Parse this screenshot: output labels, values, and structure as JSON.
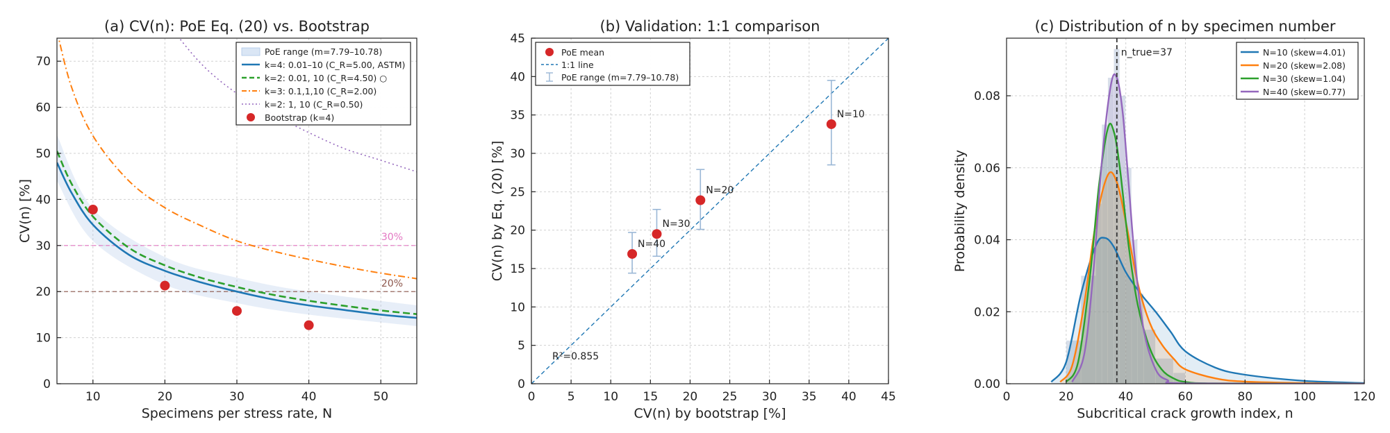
{
  "chart_data": [
    {
      "type": "line",
      "title": "(a) CV(n): PoE Eq. (20) vs. Bootstrap",
      "xlabel": "Specimens per stress rate, N",
      "ylabel": "CV(n) [%]",
      "xlim": [
        5,
        55
      ],
      "ylim": [
        0,
        75
      ],
      "xticks": [
        10,
        20,
        30,
        40,
        50
      ],
      "yticks": [
        0,
        10,
        20,
        30,
        40,
        50,
        60,
        70
      ],
      "grid": true,
      "legend_position": "top-right",
      "band": {
        "label": "PoE range (m=7.79–10.78)",
        "color": "#aec7e8",
        "x": [
          5,
          10,
          20,
          30,
          40,
          55
        ],
        "lower": [
          44,
          31,
          21.5,
          17.5,
          15,
          12.5
        ],
        "upper": [
          54,
          38,
          27.5,
          23,
          20,
          17
        ]
      },
      "series": [
        {
          "name": "k=4: 0.01–10 (C_R=5.00, ASTM)",
          "color": "#1f77b4",
          "style": "solid",
          "x": [
            5,
            7,
            10,
            15,
            20,
            25,
            30,
            35,
            40,
            45,
            50,
            55
          ],
          "values": [
            48,
            41.5,
            34.5,
            28,
            24.5,
            22,
            20,
            18.3,
            17,
            16,
            15,
            14.3
          ]
        },
        {
          "name": "k=2: 0.01, 10 (C_R=4.50) ○",
          "color": "#2ca02c",
          "style": "dashed",
          "x": [
            5,
            7,
            10,
            15,
            20,
            25,
            30,
            35,
            40,
            45,
            50,
            55
          ],
          "values": [
            50.5,
            43.5,
            36.3,
            29.5,
            25.7,
            23,
            21,
            19.3,
            18,
            16.9,
            15.9,
            15.1
          ]
        },
        {
          "name": "k=3: 0.1,1,10 (C_R=2.00)",
          "color": "#ff7f0e",
          "style": "dashdot",
          "x": [
            5,
            7,
            10,
            15,
            20,
            25,
            30,
            35,
            40,
            45,
            50,
            55
          ],
          "values": [
            76.5,
            64.5,
            53.8,
            44,
            38.2,
            34.3,
            31,
            28.8,
            27,
            25.4,
            24,
            22.8
          ]
        },
        {
          "name": "k=2: 1, 10 (C_R=0.50)",
          "color": "#9467bd",
          "style": "dotted",
          "x": [
            20,
            25,
            30,
            35,
            40,
            45,
            50,
            55
          ],
          "values": [
            79,
            69.5,
            63,
            58.5,
            54.5,
            51,
            48.5,
            46
          ]
        },
        {
          "name": "Bootstrap (k=4)",
          "color": "#d62728",
          "style": "marker",
          "x": [
            10,
            20,
            30,
            40
          ],
          "values": [
            37.8,
            21.3,
            15.8,
            12.7
          ]
        }
      ],
      "reference_lines": [
        {
          "y": 30,
          "label": "30%",
          "color": "#e377c2"
        },
        {
          "y": 20,
          "label": "20%",
          "color": "#8c564b"
        }
      ]
    },
    {
      "type": "scatter",
      "title": "(b) Validation: 1:1 comparison",
      "xlabel": "CV(n) by bootstrap [%]",
      "ylabel": "CV(n) by Eq. (20) [%]",
      "xlim": [
        0,
        45
      ],
      "ylim": [
        0,
        45
      ],
      "xticks": [
        0,
        5,
        10,
        15,
        20,
        25,
        30,
        35,
        40,
        45
      ],
      "yticks": [
        0,
        5,
        10,
        15,
        20,
        25,
        30,
        35,
        40,
        45
      ],
      "grid": true,
      "legend_position": "top-left",
      "legend": [
        "PoE mean",
        "1:1 line",
        "PoE range (m=7.79–10.78)"
      ],
      "points": [
        {
          "label": "N=40",
          "x": 12.7,
          "y": 16.9,
          "lo": 14.4,
          "hi": 19.7
        },
        {
          "label": "N=30",
          "x": 15.8,
          "y": 19.5,
          "lo": 16.6,
          "hi": 22.7
        },
        {
          "label": "N=20",
          "x": 21.3,
          "y": 23.9,
          "lo": 20.1,
          "hi": 27.9
        },
        {
          "label": "N=10",
          "x": 37.8,
          "y": 33.8,
          "lo": 28.5,
          "hi": 39.5
        }
      ],
      "annotation": "R²=0.855"
    },
    {
      "type": "area",
      "title": "(c) Distribution of n by specimen number",
      "xlabel": "Subcritical crack growth index, n",
      "ylabel": "Probability density",
      "xlim": [
        0,
        120
      ],
      "ylim": [
        0,
        0.096
      ],
      "xticks": [
        0,
        20,
        40,
        60,
        80,
        100,
        120
      ],
      "yticks": [
        0.0,
        0.02,
        0.04,
        0.06,
        0.08
      ],
      "grid": true,
      "legend_position": "top-right",
      "true_value": {
        "x": 37,
        "label": "n_true=37"
      },
      "series": [
        {
          "name": "N=10  (skew=4.01)",
          "color": "#1f77b4",
          "x": [
            15,
            20,
            25,
            30,
            33,
            36,
            40,
            45,
            50,
            55,
            60,
            70,
            80,
            100,
            120
          ],
          "values": [
            0.0005,
            0.006,
            0.025,
            0.0385,
            0.0405,
            0.038,
            0.031,
            0.025,
            0.02,
            0.0145,
            0.009,
            0.0045,
            0.0025,
            0.0008,
            0.0002
          ]
        },
        {
          "name": "N=20  (skew=2.08)",
          "color": "#ff7f0e",
          "x": [
            18,
            22,
            26,
            30,
            34,
            37,
            40,
            44,
            48,
            52,
            56,
            60,
            70,
            80,
            100,
            120
          ],
          "values": [
            0.0005,
            0.005,
            0.022,
            0.045,
            0.058,
            0.056,
            0.045,
            0.028,
            0.017,
            0.011,
            0.007,
            0.004,
            0.0015,
            0.0006,
            0.0002,
            0
          ]
        },
        {
          "name": "N=30  (skew=1.04)",
          "color": "#2ca02c",
          "x": [
            20,
            24,
            28,
            31,
            34,
            36,
            38,
            41,
            44,
            48,
            52,
            56,
            60,
            70,
            120
          ],
          "values": [
            0.0005,
            0.006,
            0.03,
            0.055,
            0.071,
            0.07,
            0.06,
            0.038,
            0.022,
            0.01,
            0.004,
            0.0015,
            0.0005,
            0.0001,
            0
          ]
        },
        {
          "name": "N=40  (skew=0.77)",
          "color": "#9467bd",
          "x": [
            22,
            26,
            29,
            32,
            35,
            37,
            39,
            41,
            43,
            46,
            50,
            54,
            60,
            120
          ],
          "values": [
            0.0005,
            0.008,
            0.03,
            0.062,
            0.083,
            0.085,
            0.075,
            0.055,
            0.035,
            0.015,
            0.004,
            0.001,
            0.0001,
            0
          ]
        }
      ],
      "histogram": {
        "bin_edges": [
          20,
          25,
          30,
          32,
          34,
          36,
          38,
          40,
          42,
          44,
          46,
          50,
          56,
          60
        ],
        "counts": [
          0.012,
          0.03,
          0.05,
          0.072,
          0.085,
          0.093,
          0.08,
          0.06,
          0.04,
          0.025,
          0.015,
          0.007,
          0.003
        ]
      }
    }
  ]
}
